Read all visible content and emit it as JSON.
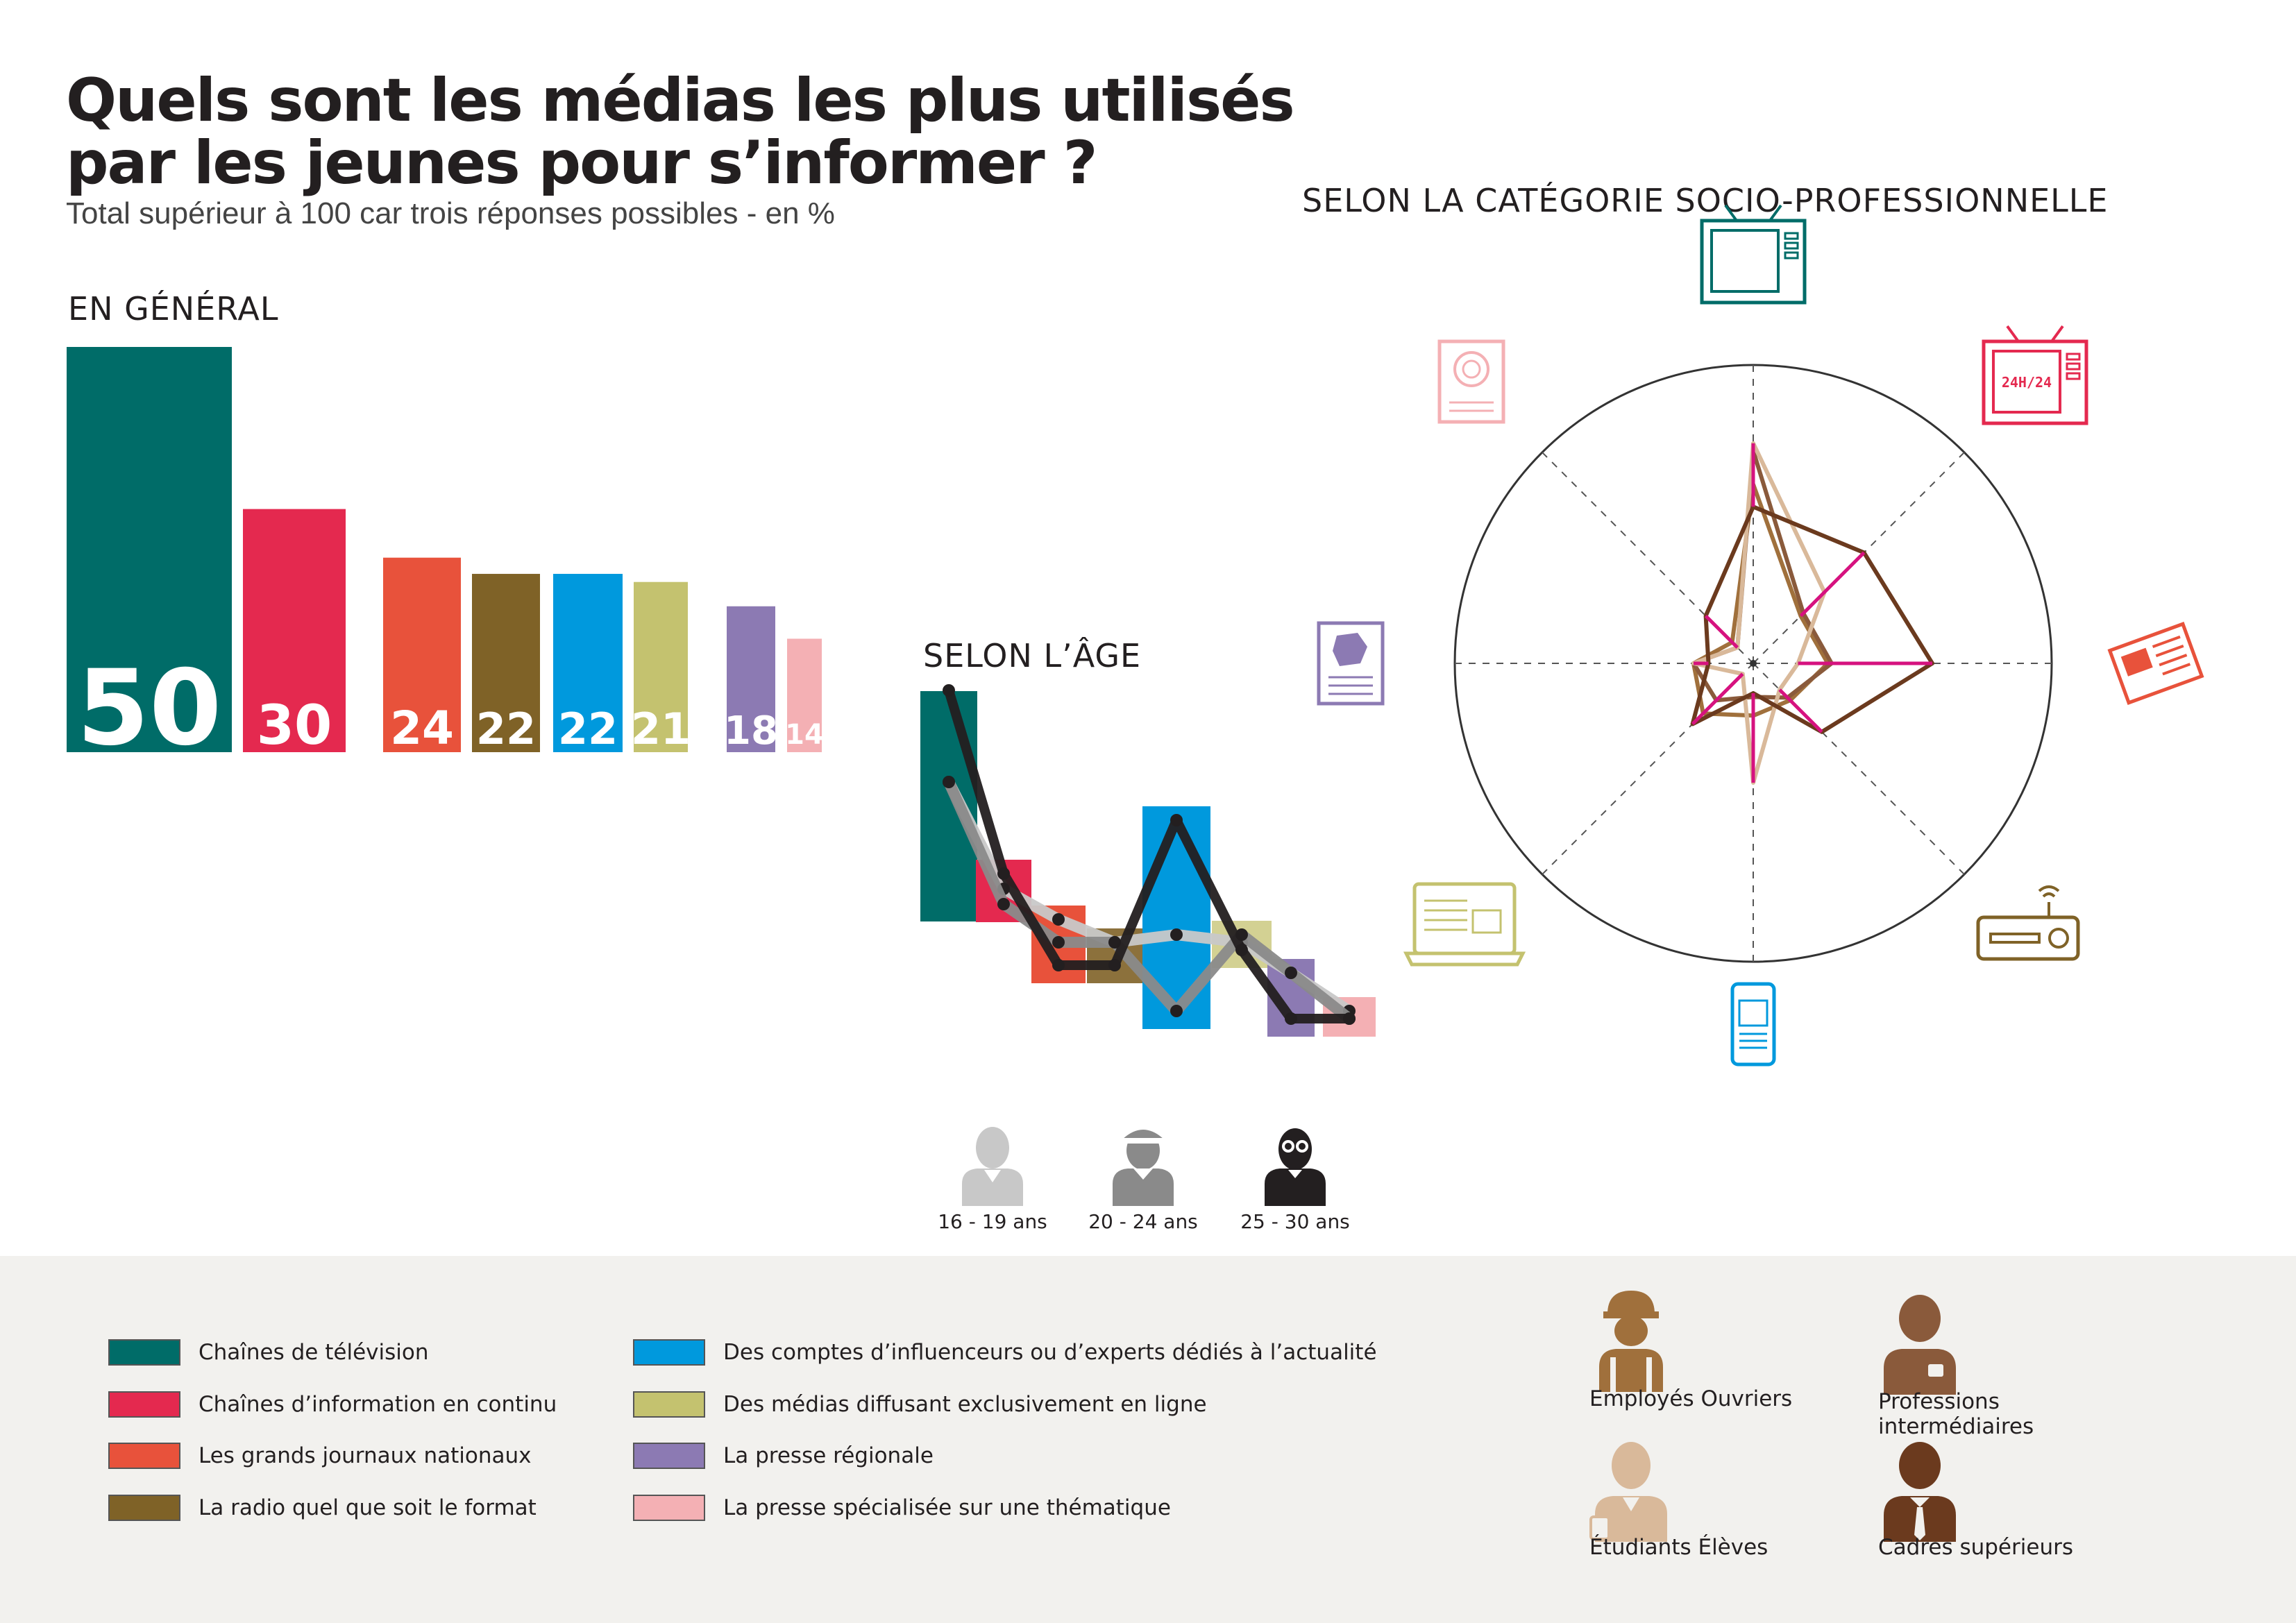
{
  "title_line1": "Quels sont les médias les plus utilisés",
  "title_line2": "par les jeunes pour s’informer ?",
  "subtitle": "Total supérieur à 100 car trois réponses possibles - en %",
  "colors": {
    "tv": "#006c68",
    "info": "#e4294f",
    "journaux": "#e8523b",
    "radio": "#7f6227",
    "influenceurs": "#0099dd",
    "en_ligne": "#c4c26f",
    "regionale": "#8c7ab3",
    "specialisee": "#f4b0b4",
    "accent_magenta": "#d6127f"
  },
  "legend": [
    {
      "label": "Chaînes de télévision",
      "color": "#006c68"
    },
    {
      "label": "Chaînes d’information en continu",
      "color": "#e4294f"
    },
    {
      "label": "Les grands journaux nationaux",
      "color": "#e8523b"
    },
    {
      "label": "La radio quel que soit le format",
      "color": "#7f6227"
    },
    {
      "label": "Des comptes d’influenceurs ou d’experts dédiés à l’actualité",
      "color": "#0099dd"
    },
    {
      "label": "Des médias diffusant exclusivement en ligne",
      "color": "#c4c26f"
    },
    {
      "label": "La presse régionale",
      "color": "#8c7ab3"
    },
    {
      "label": "La presse spécialisée sur une thématique",
      "color": "#f4b0b4"
    }
  ],
  "csp": [
    {
      "label": "Employés Ouvriers",
      "color": "#a0703c",
      "icon": "worker-hardhat-icon"
    },
    {
      "label": "Professions intermédiaires",
      "color": "#8a5a3b",
      "icon": "person-badge-icon"
    },
    {
      "label": "Étudiants Élèves",
      "color": "#d9b99a",
      "icon": "student-icon"
    },
    {
      "label": "Cadres supérieurs",
      "color": "#6b3a1e",
      "icon": "person-tie-icon"
    }
  ],
  "age_groups": [
    {
      "label": "16 - 19 ans",
      "color": "#c8c8c8",
      "icon": "person-young-icon"
    },
    {
      "label": "20 - 24 ans",
      "color": "#8a8a8a",
      "icon": "person-cap-icon"
    },
    {
      "label": "25 - 30 ans",
      "color": "#231f20",
      "icon": "person-glasses-icon"
    }
  ],
  "radar_icons": [
    "tv-icon",
    "tv-24h-icon",
    "newspaper-icon",
    "radio-icon",
    "smartphone-icon",
    "laptop-icon",
    "regional-press-icon",
    "specialized-magazine-icon"
  ],
  "tv24_label": "24H/24",
  "chart_data": [
    {
      "type": "bar",
      "title": "EN GÉNÉRAL",
      "categories": [
        "Chaînes de télévision",
        "Chaînes d’information en continu",
        "Les grands journaux nationaux",
        "La radio quel que soit le format",
        "Des comptes d’influenceurs ou d’experts dédiés à l’actualité",
        "Des médias diffusant exclusivement en ligne",
        "La presse régionale",
        "La presse spécialisée sur une thématique"
      ],
      "values": [
        50,
        30,
        24,
        22,
        22,
        21,
        18,
        14
      ],
      "data_labels": [
        "50",
        "30",
        "24",
        "22",
        "22",
        "21",
        "18",
        "14"
      ],
      "ylim": [
        0,
        50
      ]
    },
    {
      "type": "line",
      "title": "SELON L’ÂGE",
      "categories": [
        "Chaînes de télévision",
        "Chaînes d’information en continu",
        "Les grands journaux nationaux",
        "La radio quel que soit le format",
        "Des comptes d’influenceurs ou d’experts dédiés à l’actualité",
        "Des médias diffusant exclusivement en ligne",
        "La presse régionale",
        "La presse spécialisée sur une thématique"
      ],
      "overall": [
        50,
        30,
        24,
        22,
        22,
        21,
        18,
        14
      ],
      "series": [
        {
          "name": "16 - 19 ans",
          "values": [
            43,
            29,
            25,
            22,
            23,
            22,
            18,
            13
          ]
        },
        {
          "name": "20 - 24 ans",
          "values": [
            43,
            27,
            22,
            22,
            13,
            23,
            18,
            12
          ]
        },
        {
          "name": "25 - 30 ans",
          "values": [
            55,
            31,
            19,
            19,
            38,
            21,
            12,
            12
          ]
        }
      ],
      "ylim": [
        0,
        60
      ]
    },
    {
      "type": "radar",
      "title": "SELON LA CATÉGORIE SOCIO-PROFESSIONNELLE",
      "axes": [
        "Chaînes de télévision",
        "Chaînes d’information en continu",
        "Les grands journaux nationaux",
        "La radio quel que soit le format",
        "Des comptes d’influenceurs ou d’experts dédiés à l’actualité",
        "Des médias diffusant exclusivement en ligne",
        "La presse régionale",
        "La presse spécialisée sur une thématique"
      ],
      "series": [
        {
          "name": "Employés Ouvriers",
          "values": [
            48,
            18,
            20,
            14,
            14,
            19,
            16,
            8
          ]
        },
        {
          "name": "Professions intermédiaires",
          "values": [
            57,
            19,
            21,
            13,
            9,
            14,
            16,
            6
          ]
        },
        {
          "name": "Étudiants Élèves",
          "values": [
            59,
            27,
            12,
            10,
            32,
            4,
            16,
            6
          ]
        },
        {
          "name": "Cadres supérieurs",
          "values": [
            42,
            42,
            48,
            26,
            8,
            23,
            12,
            18
          ]
        }
      ],
      "rlim": [
        0,
        80
      ]
    }
  ]
}
